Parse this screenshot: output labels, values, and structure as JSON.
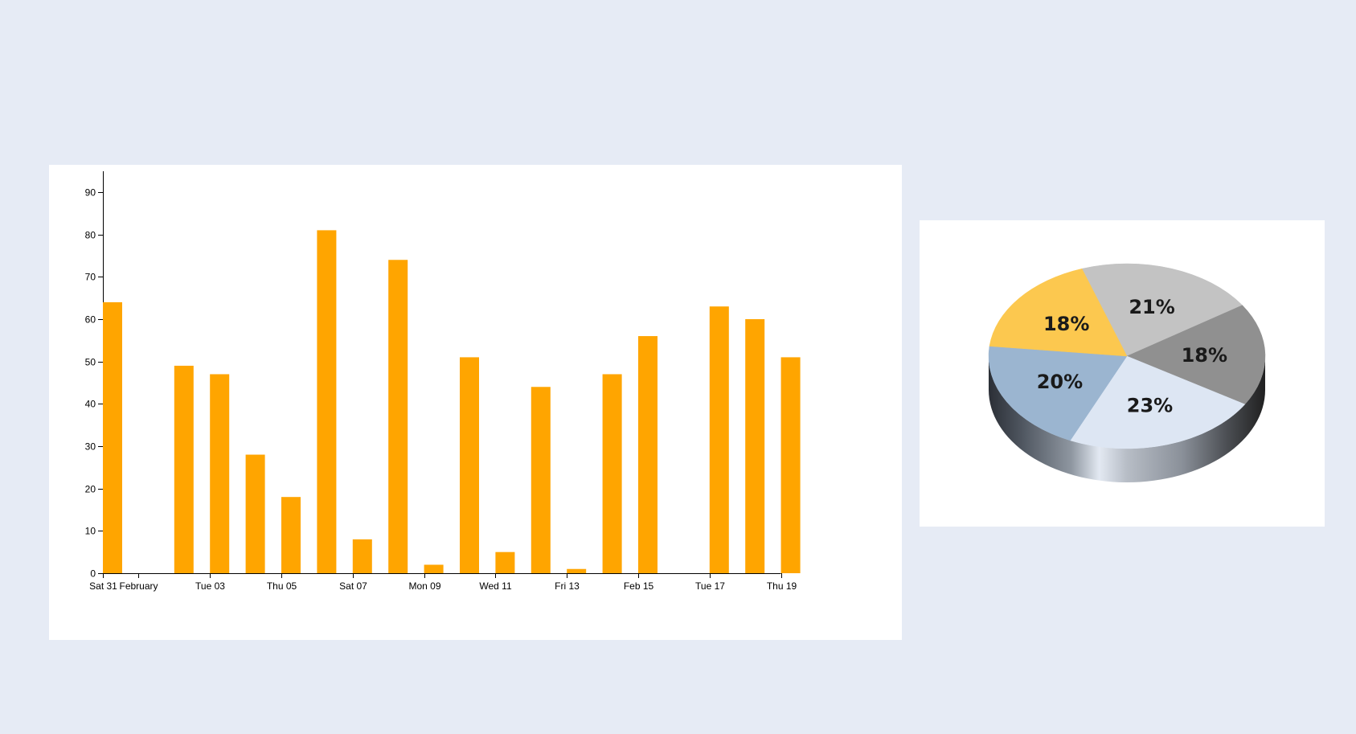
{
  "chart_data": [
    {
      "type": "bar",
      "title": "",
      "xlabel": "",
      "ylabel": "",
      "bar_color": "#ffa500",
      "ylim": [
        0,
        95
      ],
      "y_ticks": [
        0,
        10,
        20,
        30,
        40,
        50,
        60,
        70,
        80,
        90
      ],
      "x_tick_labels": [
        "Sat 31",
        "February",
        "Tue 03",
        "Thu 05",
        "Sat 07",
        "Mon 09",
        "Wed 11",
        "Fri 13",
        "Feb 15",
        "Tue 17",
        "Thu 19"
      ],
      "x_tick_dates": [
        "01-31",
        "02-01",
        "02-03",
        "02-05",
        "02-07",
        "02-09",
        "02-11",
        "02-13",
        "02-15",
        "02-17",
        "02-19"
      ],
      "x": [
        "01-31",
        "02-01",
        "02-02",
        "02-03",
        "02-04",
        "02-05",
        "02-06",
        "02-07",
        "02-08",
        "02-09",
        "02-10",
        "02-11",
        "02-12",
        "02-13",
        "02-14",
        "02-15",
        "02-16",
        "02-17",
        "02-18",
        "02-19"
      ],
      "values": [
        64,
        0,
        49,
        47,
        28,
        18,
        81,
        8,
        74,
        2,
        51,
        5,
        44,
        1,
        47,
        56,
        0,
        63,
        60,
        51
      ]
    },
    {
      "type": "pie",
      "title": "",
      "style": "3d",
      "slices": [
        {
          "label": "21%",
          "value": 21,
          "color": "#c3c3c3"
        },
        {
          "label": "18%",
          "value": 18,
          "color": "#909090"
        },
        {
          "label": "23%",
          "value": 23,
          "color": "#dde6f3"
        },
        {
          "label": "20%",
          "value": 20,
          "color": "#9bb5d0"
        },
        {
          "label": "18%",
          "value": 18,
          "color": "#fcc84f"
        }
      ]
    }
  ]
}
